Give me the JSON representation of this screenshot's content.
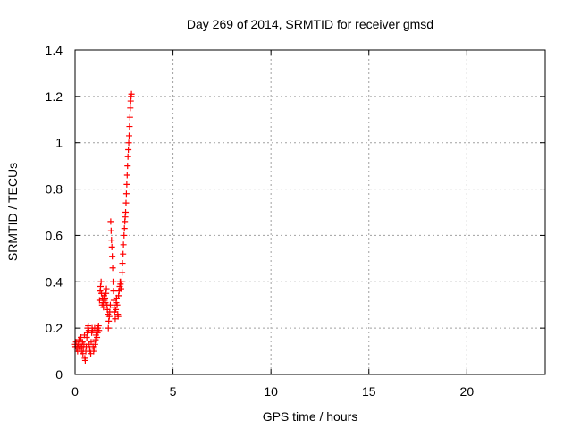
{
  "chart_data": {
    "type": "scatter",
    "title": "Day 269 of 2014, SRMTID for receiver gmsd",
    "xlabel": "GPS time / hours",
    "ylabel": "SRMTID / TECUs",
    "xlim": [
      0,
      24
    ],
    "ylim": [
      0,
      1.4
    ],
    "xticks": [
      0,
      5,
      10,
      15,
      20
    ],
    "yticks": [
      0,
      0.2,
      0.4,
      0.6,
      0.8,
      1,
      1.2,
      1.4
    ],
    "xtick_labels": [
      "0",
      "5",
      "10",
      "15",
      "20"
    ],
    "ytick_labels": [
      "0",
      "0.2",
      "0.4",
      "0.6",
      "0.8",
      "1",
      "1.2",
      "1.4"
    ],
    "grid": true,
    "marker": "+",
    "color": "#ff0000",
    "series": [
      {
        "name": "SRMTID",
        "points": [
          [
            0.0,
            0.13
          ],
          [
            0.02,
            0.12
          ],
          [
            0.05,
            0.14
          ],
          [
            0.08,
            0.11
          ],
          [
            0.1,
            0.12
          ],
          [
            0.13,
            0.1
          ],
          [
            0.15,
            0.13
          ],
          [
            0.18,
            0.12
          ],
          [
            0.2,
            0.15
          ],
          [
            0.23,
            0.11
          ],
          [
            0.25,
            0.13
          ],
          [
            0.28,
            0.12
          ],
          [
            0.3,
            0.16
          ],
          [
            0.33,
            0.1
          ],
          [
            0.35,
            0.12
          ],
          [
            0.38,
            0.14
          ],
          [
            0.4,
            0.09
          ],
          [
            0.42,
            0.11
          ],
          [
            0.45,
            0.13
          ],
          [
            0.48,
            0.17
          ],
          [
            0.5,
            0.07
          ],
          [
            0.52,
            0.06
          ],
          [
            0.55,
            0.1
          ],
          [
            0.57,
            0.12
          ],
          [
            0.6,
            0.16
          ],
          [
            0.62,
            0.18
          ],
          [
            0.65,
            0.2
          ],
          [
            0.67,
            0.21
          ],
          [
            0.7,
            0.19
          ],
          [
            0.72,
            0.13
          ],
          [
            0.75,
            0.11
          ],
          [
            0.77,
            0.1
          ],
          [
            0.8,
            0.09
          ],
          [
            0.82,
            0.14
          ],
          [
            0.85,
            0.18
          ],
          [
            0.87,
            0.2
          ],
          [
            0.9,
            0.19
          ],
          [
            0.92,
            0.12
          ],
          [
            0.95,
            0.1
          ],
          [
            0.97,
            0.11
          ],
          [
            1.0,
            0.2
          ],
          [
            1.02,
            0.13
          ],
          [
            1.05,
            0.15
          ],
          [
            1.07,
            0.17
          ],
          [
            1.1,
            0.19
          ],
          [
            1.12,
            0.16
          ],
          [
            1.15,
            0.18
          ],
          [
            1.17,
            0.2
          ],
          [
            1.2,
            0.21
          ],
          [
            1.22,
            0.19
          ],
          [
            1.25,
            0.32
          ],
          [
            1.28,
            0.36
          ],
          [
            1.3,
            0.38
          ],
          [
            1.33,
            0.4
          ],
          [
            1.35,
            0.35
          ],
          [
            1.38,
            0.3
          ],
          [
            1.4,
            0.33
          ],
          [
            1.43,
            0.31
          ],
          [
            1.45,
            0.29
          ],
          [
            1.48,
            0.34
          ],
          [
            1.5,
            0.32
          ],
          [
            1.53,
            0.33
          ],
          [
            1.55,
            0.31
          ],
          [
            1.58,
            0.35
          ],
          [
            1.6,
            0.37
          ],
          [
            1.63,
            0.3
          ],
          [
            1.65,
            0.28
          ],
          [
            1.68,
            0.26
          ],
          [
            1.7,
            0.2
          ],
          [
            1.72,
            0.23
          ],
          [
            1.75,
            0.25
          ],
          [
            1.77,
            0.27
          ],
          [
            1.8,
            0.3
          ],
          [
            1.82,
            0.66
          ],
          [
            1.84,
            0.62
          ],
          [
            1.86,
            0.58
          ],
          [
            1.88,
            0.55
          ],
          [
            1.9,
            0.51
          ],
          [
            1.92,
            0.46
          ],
          [
            1.94,
            0.4
          ],
          [
            1.96,
            0.36
          ],
          [
            1.98,
            0.32
          ],
          [
            2.0,
            0.29
          ],
          [
            2.02,
            0.27
          ],
          [
            2.05,
            0.24
          ],
          [
            2.08,
            0.28
          ],
          [
            2.1,
            0.31
          ],
          [
            2.12,
            0.33
          ],
          [
            2.15,
            0.3
          ],
          [
            2.18,
            0.26
          ],
          [
            2.2,
            0.25
          ],
          [
            2.22,
            0.34
          ],
          [
            2.25,
            0.36
          ],
          [
            2.28,
            0.38
          ],
          [
            2.3,
            0.4
          ],
          [
            2.32,
            0.39
          ],
          [
            2.35,
            0.37
          ],
          [
            2.38,
            0.4
          ],
          [
            2.4,
            0.44
          ],
          [
            2.42,
            0.48
          ],
          [
            2.45,
            0.52
          ],
          [
            2.47,
            0.56
          ],
          [
            2.5,
            0.6
          ],
          [
            2.52,
            0.63
          ],
          [
            2.54,
            0.66
          ],
          [
            2.56,
            0.68
          ],
          [
            2.58,
            0.7
          ],
          [
            2.6,
            0.74
          ],
          [
            2.62,
            0.78
          ],
          [
            2.64,
            0.82
          ],
          [
            2.66,
            0.86
          ],
          [
            2.68,
            0.9
          ],
          [
            2.7,
            0.94
          ],
          [
            2.72,
            0.97
          ],
          [
            2.74,
            1.0
          ],
          [
            2.76,
            1.03
          ],
          [
            2.78,
            1.07
          ],
          [
            2.8,
            1.11
          ],
          [
            2.82,
            1.15
          ],
          [
            2.84,
            1.18
          ],
          [
            2.86,
            1.2
          ],
          [
            2.88,
            1.21
          ]
        ]
      }
    ]
  }
}
